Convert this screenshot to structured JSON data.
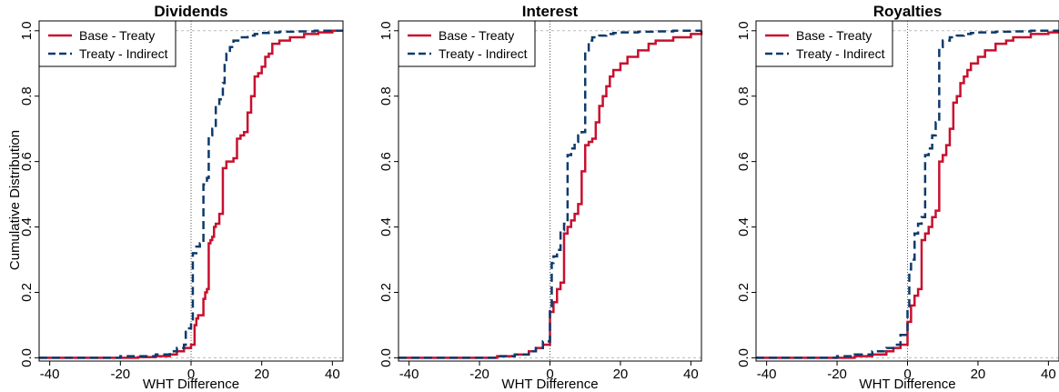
{
  "colors": {
    "base_treaty": "#c8102e",
    "treaty_indirect": "#0d3a6b",
    "grid": "#bbbbbb",
    "zero_line": "#555555"
  },
  "legend": {
    "entries": [
      "Base - Treaty",
      "Treaty - Indirect"
    ],
    "placement": "top-left"
  },
  "chart_data": [
    {
      "type": "line",
      "title": "Dividends",
      "xlabel": "WHT Difference",
      "ylabel": "Cumulative Distribution",
      "xlim": [
        -43,
        43
      ],
      "ylim": [
        -0.01,
        1.03
      ],
      "xticks": [
        -40,
        -20,
        0,
        20,
        40
      ],
      "yticks": [
        0.0,
        0.2,
        0.4,
        0.6,
        0.8,
        1.0
      ],
      "hlines_dashed": [
        0,
        1
      ],
      "vline_dotted": 0,
      "series": [
        {
          "name": "Base - Treaty",
          "style": "solid",
          "x": [
            -43,
            -15,
            -10,
            -6,
            -4,
            -2,
            0,
            1,
            1.5,
            2,
            3,
            3.5,
            4,
            4.5,
            5,
            5.5,
            6,
            6.5,
            7,
            8,
            9,
            10,
            11,
            12,
            13,
            14,
            15,
            16,
            17,
            18,
            19,
            20,
            21,
            22,
            23,
            25,
            28,
            32,
            36,
            40,
            43
          ],
          "y": [
            0,
            0.002,
            0.005,
            0.01,
            0.02,
            0.03,
            0.04,
            0.1,
            0.12,
            0.13,
            0.13,
            0.18,
            0.2,
            0.21,
            0.35,
            0.36,
            0.37,
            0.4,
            0.41,
            0.44,
            0.58,
            0.6,
            0.6,
            0.61,
            0.67,
            0.68,
            0.69,
            0.75,
            0.8,
            0.86,
            0.87,
            0.89,
            0.92,
            0.93,
            0.96,
            0.97,
            0.98,
            0.99,
            0.995,
            1.0,
            1.0
          ]
        },
        {
          "name": "Treaty - Indirect",
          "style": "dashed",
          "x": [
            -43,
            -20,
            -10,
            -6,
            -4,
            -2,
            -1.5,
            0,
            0.5,
            1.5,
            2.5,
            3.5,
            4.5,
            5,
            6,
            7,
            8,
            9,
            9.5,
            10,
            11,
            12,
            14,
            16,
            18,
            20,
            22,
            25,
            30,
            35,
            43
          ],
          "y": [
            0,
            0.005,
            0.01,
            0.02,
            0.03,
            0.04,
            0.09,
            0.11,
            0.32,
            0.34,
            0.35,
            0.53,
            0.55,
            0.68,
            0.7,
            0.77,
            0.79,
            0.84,
            0.9,
            0.93,
            0.95,
            0.97,
            0.98,
            0.985,
            0.99,
            0.993,
            0.995,
            0.997,
            0.998,
            1.0,
            1.0
          ]
        }
      ]
    },
    {
      "type": "line",
      "title": "Interest",
      "xlabel": "WHT Difference",
      "ylabel": "",
      "xlim": [
        -43,
        43
      ],
      "ylim": [
        -0.01,
        1.03
      ],
      "xticks": [
        -40,
        -20,
        0,
        20,
        40
      ],
      "yticks": [
        0.0,
        0.2,
        0.4,
        0.6,
        0.8,
        1.0
      ],
      "hlines_dashed": [
        0,
        1
      ],
      "vline_dotted": 0,
      "series": [
        {
          "name": "Base - Treaty",
          "style": "solid",
          "x": [
            -43,
            -15,
            -10,
            -6,
            -4,
            -2,
            0,
            1,
            2,
            3,
            4,
            5,
            6,
            7,
            8,
            9,
            10,
            11,
            12,
            13,
            14,
            15,
            16,
            17,
            18,
            20,
            22,
            25,
            28,
            30,
            35,
            40,
            43
          ],
          "y": [
            0,
            0.005,
            0.01,
            0.02,
            0.03,
            0.04,
            0.14,
            0.17,
            0.21,
            0.23,
            0.38,
            0.4,
            0.42,
            0.44,
            0.47,
            0.57,
            0.65,
            0.66,
            0.67,
            0.72,
            0.77,
            0.8,
            0.83,
            0.86,
            0.88,
            0.9,
            0.92,
            0.94,
            0.96,
            0.97,
            0.98,
            0.99,
            1.0
          ]
        },
        {
          "name": "Treaty - Indirect",
          "style": "dashed",
          "x": [
            -43,
            -15,
            -10,
            -6,
            -4,
            -2,
            0,
            0.5,
            1,
            2,
            3,
            4,
            5,
            6,
            7,
            8,
            9,
            10,
            11,
            12,
            14,
            16,
            18,
            20,
            25,
            30,
            35,
            43
          ],
          "y": [
            0,
            0.005,
            0.01,
            0.02,
            0.03,
            0.05,
            0.15,
            0.29,
            0.31,
            0.33,
            0.39,
            0.41,
            0.62,
            0.64,
            0.66,
            0.68,
            0.69,
            0.94,
            0.97,
            0.98,
            0.985,
            0.99,
            0.993,
            0.995,
            0.997,
            0.998,
            1.0,
            1.0
          ]
        }
      ]
    },
    {
      "type": "line",
      "title": "Royalties",
      "xlabel": "WHT Difference",
      "ylabel": "",
      "xlim": [
        -43,
        43
      ],
      "ylim": [
        -0.01,
        1.03
      ],
      "xticks": [
        -40,
        -20,
        0,
        20,
        40
      ],
      "yticks": [
        0.0,
        0.2,
        0.4,
        0.6,
        0.8,
        1.0
      ],
      "hlines_dashed": [
        0,
        1
      ],
      "vline_dotted": 0,
      "series": [
        {
          "name": "Base - Treaty",
          "style": "solid",
          "x": [
            -43,
            -15,
            -10,
            -6,
            -4,
            -2,
            0,
            1,
            2,
            3,
            4,
            5,
            6,
            7,
            8,
            9,
            10,
            11,
            12,
            13,
            14,
            15,
            16,
            17,
            18,
            20,
            22,
            25,
            28,
            30,
            35,
            40,
            43
          ],
          "y": [
            0,
            0.005,
            0.01,
            0.02,
            0.03,
            0.04,
            0.11,
            0.16,
            0.19,
            0.21,
            0.36,
            0.38,
            0.4,
            0.43,
            0.45,
            0.6,
            0.62,
            0.65,
            0.7,
            0.78,
            0.8,
            0.84,
            0.86,
            0.88,
            0.9,
            0.92,
            0.94,
            0.96,
            0.97,
            0.98,
            0.99,
            0.995,
            1.0
          ]
        },
        {
          "name": "Treaty - Indirect",
          "style": "dashed",
          "x": [
            -43,
            -20,
            -15,
            -10,
            -6,
            -4,
            -2,
            0,
            0.5,
            1,
            2,
            3,
            4,
            5,
            6,
            7,
            8,
            9,
            10,
            12,
            14,
            16,
            18,
            20,
            25,
            30,
            35,
            43
          ],
          "y": [
            0,
            0.005,
            0.01,
            0.02,
            0.03,
            0.04,
            0.07,
            0.15,
            0.27,
            0.3,
            0.38,
            0.41,
            0.43,
            0.62,
            0.64,
            0.68,
            0.72,
            0.95,
            0.97,
            0.98,
            0.985,
            0.99,
            0.993,
            0.995,
            0.997,
            0.998,
            1.0,
            1.0
          ]
        }
      ]
    }
  ]
}
